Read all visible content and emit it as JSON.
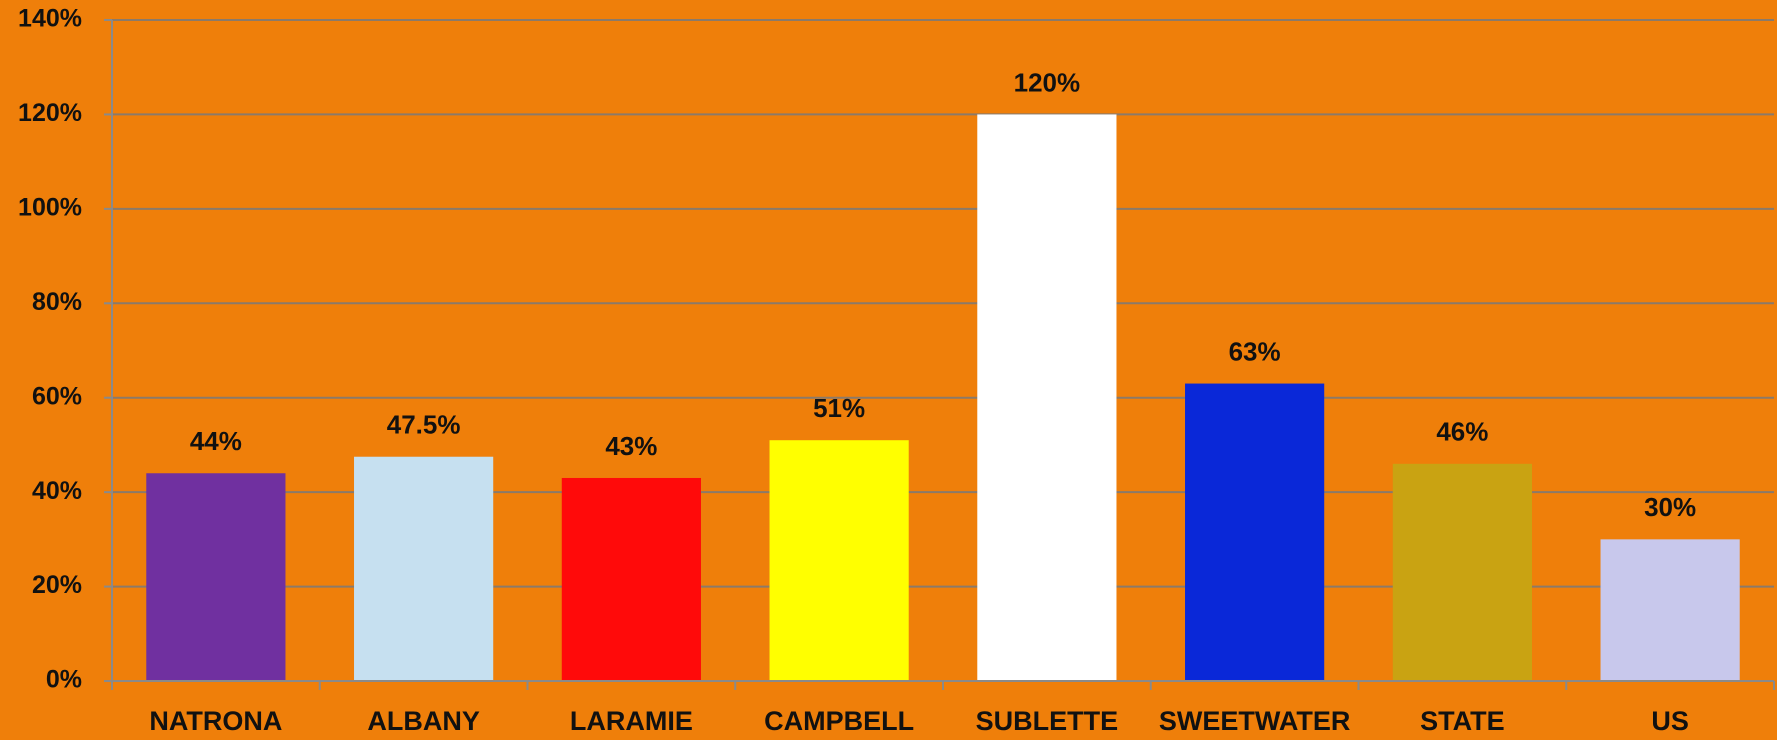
{
  "chart_data": {
    "type": "bar",
    "categories": [
      "NATRONA",
      "ALBANY",
      "LARAMIE",
      "CAMPBELL",
      "SUBLETTE",
      "SWEETWATER",
      "STATE",
      "US"
    ],
    "values": [
      44,
      47.5,
      43,
      51,
      120,
      63,
      46,
      30
    ],
    "value_labels": [
      "44%",
      "47.5%",
      "43%",
      "51%",
      "120%",
      "63%",
      "46%",
      "30%"
    ],
    "colors": [
      "#7030a0",
      "#c6e0f0",
      "#ff0a0a",
      "#ffff00",
      "#ffffff",
      "#0a28d8",
      "#c9a312",
      "#c8c8ec"
    ],
    "ylim": [
      0,
      140
    ],
    "yticks": [
      {
        "value": 0,
        "label": "0%"
      },
      {
        "value": 20,
        "label": "20%"
      },
      {
        "value": 40,
        "label": "40%"
      },
      {
        "value": 60,
        "label": "60%"
      },
      {
        "value": 80,
        "label": "80%"
      },
      {
        "value": 100,
        "label": "100%"
      },
      {
        "value": 120,
        "label": "120%"
      },
      {
        "value": 140,
        "label": "140%"
      }
    ],
    "grid": true
  }
}
